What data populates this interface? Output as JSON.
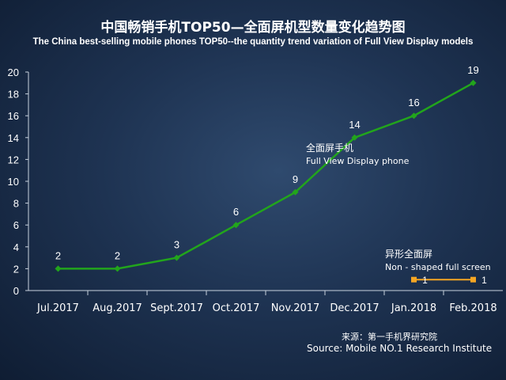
{
  "chart_data": {
    "type": "line",
    "title": "中国畅销手机TOP50—全面屏机型数量变化趋势图",
    "subtitle": "The China best-selling mobile phones TOP50--the quantity trend variation of Full View Display models",
    "categories": [
      "Jul.2017",
      "Aug.2017",
      "Sept.2017",
      "Oct.2017",
      "Nov.2017",
      "Dec.2017",
      "Jan.2018",
      "Feb.2018"
    ],
    "ylim": [
      0,
      20
    ],
    "yticks": [
      "0",
      "2",
      "4",
      "6",
      "8",
      "10",
      "12",
      "14",
      "16",
      "18",
      "20"
    ],
    "grid": false,
    "series": [
      {
        "name_cn": "全面屏手机",
        "name": "Full View Display phone",
        "color": "#22a51c",
        "values": [
          2,
          2,
          3,
          6,
          9,
          14,
          16,
          19
        ]
      },
      {
        "name_cn": "异形全面屏",
        "name": "Non - shaped full screen",
        "color": "#f5a623",
        "values": [
          null,
          null,
          null,
          null,
          null,
          null,
          1,
          1
        ]
      }
    ]
  },
  "source": {
    "cn": "来源：第一手机界研究院",
    "en": "Source: Mobile NO.1 Research Institute"
  }
}
